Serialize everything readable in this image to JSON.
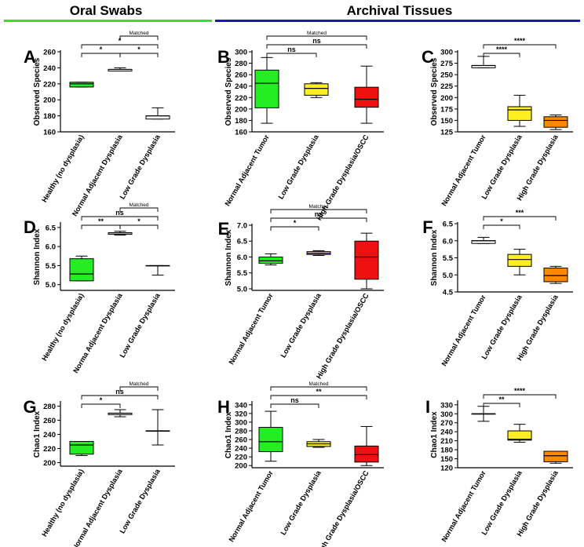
{
  "headers": {
    "oral": "Oral Swabs",
    "archival": "Archival Tissues"
  },
  "colors": {
    "oral_bar": "#33dd33",
    "archival_bar": "#1a1aaa",
    "green": "#22ee22",
    "yellow": "#ffee22",
    "red": "#ee1111",
    "orange": "#ff8800",
    "white": "#ffffff"
  },
  "chart_data": [
    {
      "id": "A",
      "panel_label": "A",
      "type": "box",
      "ylabel": "Observed Species",
      "ylim": [
        160,
        260
      ],
      "ticks": [
        "160",
        "180",
        "200",
        "220",
        "240",
        "260"
      ],
      "categories": [
        "Healthy (no dysplasia)",
        "Normal Adjacent Dysplasia",
        "Low Grade Dysplasia"
      ],
      "boxes": [
        {
          "fill": "green",
          "min": 216,
          "q1": 216,
          "median": 220,
          "q3": 222,
          "max": 222
        },
        {
          "fill": "white",
          "min": 236,
          "q1": 236,
          "median": 238,
          "q3": 238,
          "max": 240
        },
        {
          "fill": "white",
          "min": 176,
          "q1": 176,
          "median": 180,
          "q3": 180,
          "max": 190
        }
      ],
      "brackets": [
        {
          "label": "Matched",
          "from": 1,
          "to": 2,
          "level": 0
        },
        {
          "label": "*",
          "from": 0,
          "to": 2,
          "level": 1
        },
        {
          "label": "*",
          "from": 0,
          "to": 1,
          "level": 2
        },
        {
          "label": "*",
          "from": 1,
          "to": 2,
          "level": 2
        }
      ]
    },
    {
      "id": "B",
      "panel_label": "B",
      "type": "box",
      "ylabel": "Observed Species",
      "ylim": [
        160,
        300
      ],
      "ticks": [
        "160",
        "180",
        "200",
        "220",
        "240",
        "260",
        "280",
        "300"
      ],
      "categories": [
        "Normal Adjacent Tumor",
        "Low Grade Dysplasia",
        "High Grade Dysplasia/OSCC"
      ],
      "boxes": [
        {
          "fill": "green",
          "min": 175,
          "q1": 202,
          "median": 245,
          "q3": 268,
          "max": 290
        },
        {
          "fill": "yellow",
          "min": 220,
          "q1": 224,
          "median": 236,
          "q3": 244,
          "max": 246
        },
        {
          "fill": "red",
          "min": 175,
          "q1": 203,
          "median": 217,
          "q3": 238,
          "max": 275
        }
      ],
      "brackets": [
        {
          "label": "Matched",
          "from": 0,
          "to": 2,
          "level": 0
        },
        {
          "label": "ns",
          "from": 0,
          "to": 2,
          "level": 1
        },
        {
          "label": "ns",
          "from": 0,
          "to": 1,
          "level": 2
        }
      ]
    },
    {
      "id": "C",
      "panel_label": "C",
      "type": "box",
      "ylabel": "Observed Species",
      "ylim": [
        125,
        300
      ],
      "ticks": [
        "125",
        "150",
        "175",
        "200",
        "225",
        "250",
        "275",
        "300"
      ],
      "categories": [
        "Normal Adjacent Tumor",
        "Low Grade Dysplasia",
        "High Grade Dysplasia"
      ],
      "boxes": [
        {
          "fill": "white",
          "min": 265,
          "q1": 265,
          "median": 270,
          "q3": 270,
          "max": 290
        },
        {
          "fill": "yellow",
          "min": 137,
          "q1": 150,
          "median": 173,
          "q3": 180,
          "max": 205
        },
        {
          "fill": "orange",
          "min": 130,
          "q1": 135,
          "median": 150,
          "q3": 158,
          "max": 162
        }
      ],
      "brackets": [
        {
          "label": "****",
          "from": 0,
          "to": 2,
          "level": 1
        },
        {
          "label": "****",
          "from": 0,
          "to": 1,
          "level": 2
        }
      ]
    },
    {
      "id": "D",
      "panel_label": "D",
      "type": "box",
      "ylabel": "Shannon Index",
      "ylim": [
        4.85,
        6.6
      ],
      "ticks": [
        "5.0",
        "5.5",
        "6.0",
        "6.5"
      ],
      "categories": [
        "Healthy (no dysplasia)",
        "Norma Adjacent Dysplasia",
        "Low Grade Dysplasia"
      ],
      "boxes": [
        {
          "fill": "green",
          "min": 5.1,
          "q1": 5.1,
          "median": 5.28,
          "q3": 5.68,
          "max": 5.75
        },
        {
          "fill": "white",
          "min": 6.3,
          "q1": 6.32,
          "median": 6.36,
          "q3": 6.36,
          "max": 6.4
        },
        {
          "fill": "white",
          "min": 5.25,
          "q1": 5.5,
          "median": 5.5,
          "q3": 5.5,
          "max": 5.5
        }
      ],
      "brackets": [
        {
          "label": "Matched",
          "from": 1,
          "to": 2,
          "level": 0
        },
        {
          "label": "ns",
          "from": 0,
          "to": 2,
          "level": 1
        },
        {
          "label": "**",
          "from": 0,
          "to": 1,
          "level": 2
        },
        {
          "label": "*",
          "from": 1,
          "to": 2,
          "level": 2
        }
      ]
    },
    {
      "id": "E",
      "panel_label": "E",
      "type": "box",
      "ylabel": "Shannon Index",
      "ylim": [
        4.95,
        7.0
      ],
      "ticks": [
        "5.0",
        "5.5",
        "6.0",
        "6.5",
        "7.0"
      ],
      "categories": [
        "Normal Adjacent Tumor",
        "Low Grade Dysplasia",
        "High Grade Dysplasia/OSCC"
      ],
      "boxes": [
        {
          "fill": "green",
          "min": 5.75,
          "q1": 5.8,
          "median": 5.88,
          "q3": 6.0,
          "max": 6.1
        },
        {
          "fill": "yellow",
          "min": 6.05,
          "q1": 6.08,
          "median": 6.12,
          "q3": 6.17,
          "max": 6.2
        },
        {
          "fill": "red",
          "min": 5.0,
          "q1": 5.3,
          "median": 6.0,
          "q3": 6.5,
          "max": 6.75
        }
      ],
      "brackets": [
        {
          "label": "Matched",
          "from": 0,
          "to": 2,
          "level": 0
        },
        {
          "label": "ns",
          "from": 0,
          "to": 2,
          "level": 1
        },
        {
          "label": "*",
          "from": 0,
          "to": 1,
          "level": 2
        }
      ]
    },
    {
      "id": "F",
      "panel_label": "F",
      "type": "box",
      "ylabel": "Shannon Index",
      "ylim": [
        4.5,
        6.5
      ],
      "ticks": [
        "4.5",
        "5.0",
        "5.5",
        "6.0",
        "6.5"
      ],
      "categories": [
        "Normal Adjacent Tumor",
        "Low Grade Dysplasia",
        "High Grade Dysplasia"
      ],
      "boxes": [
        {
          "fill": "white",
          "min": 5.92,
          "q1": 5.92,
          "median": 6.0,
          "q3": 6.0,
          "max": 6.1
        },
        {
          "fill": "yellow",
          "min": 5.0,
          "q1": 5.25,
          "median": 5.45,
          "q3": 5.6,
          "max": 5.75
        },
        {
          "fill": "orange",
          "min": 4.75,
          "q1": 4.8,
          "median": 4.98,
          "q3": 5.2,
          "max": 5.25
        }
      ],
      "brackets": [
        {
          "label": "***",
          "from": 0,
          "to": 2,
          "level": 1
        },
        {
          "label": "*",
          "from": 0,
          "to": 1,
          "level": 2
        }
      ]
    },
    {
      "id": "G",
      "panel_label": "G",
      "type": "box",
      "ylabel": "Chao1 Index",
      "ylim": [
        195,
        285
      ],
      "ticks": [
        "200",
        "220",
        "240",
        "260",
        "280"
      ],
      "categories": [
        "Healthy (no dysplasia)",
        "Normal Adjacent Dysplasia",
        "Low Grade Dysplasia"
      ],
      "boxes": [
        {
          "fill": "green",
          "min": 210,
          "q1": 212,
          "median": 225,
          "q3": 230,
          "max": 230
        },
        {
          "fill": "white",
          "min": 265,
          "q1": 268,
          "median": 270,
          "q3": 270,
          "max": 275
        },
        {
          "fill": "white",
          "min": 225,
          "q1": 245,
          "median": 245,
          "q3": 245,
          "max": 275
        }
      ],
      "brackets": [
        {
          "label": "Matched",
          "from": 1,
          "to": 2,
          "level": 0
        },
        {
          "label": "ns",
          "from": 0,
          "to": 2,
          "level": 1
        },
        {
          "label": "*",
          "from": 0,
          "to": 1,
          "level": 2
        }
      ]
    },
    {
      "id": "H",
      "panel_label": "H",
      "type": "box",
      "ylabel": "Chao1 Index",
      "ylim": [
        195,
        345
      ],
      "ticks": [
        "200",
        "220",
        "240",
        "260",
        "280",
        "300",
        "320",
        "340"
      ],
      "categories": [
        "Normal Adjacent Tumor",
        "Low Grade Dysplasia",
        "High Grade Dysplasia/OSCC"
      ],
      "boxes": [
        {
          "fill": "green",
          "min": 210,
          "q1": 232,
          "median": 255,
          "q3": 288,
          "max": 325
        },
        {
          "fill": "yellow",
          "min": 242,
          "q1": 244,
          "median": 250,
          "q3": 255,
          "max": 260
        },
        {
          "fill": "red",
          "min": 200,
          "q1": 208,
          "median": 225,
          "q3": 245,
          "max": 290
        }
      ],
      "brackets": [
        {
          "label": "Matched",
          "from": 0,
          "to": 2,
          "level": 0
        },
        {
          "label": "**",
          "from": 0,
          "to": 2,
          "level": 1
        },
        {
          "label": "ns",
          "from": 0,
          "to": 1,
          "level": 2
        }
      ]
    },
    {
      "id": "I",
      "panel_label": "I",
      "type": "box",
      "ylabel": "Chao1 Index",
      "ylim": [
        120,
        340
      ],
      "ticks": [
        "120",
        "150",
        "180",
        "210",
        "240",
        "270",
        "300",
        "330"
      ],
      "categories": [
        "Normal Adjacent Tumor",
        "Low Grade Dysplasia",
        "High Grade Dysplasia"
      ],
      "boxes": [
        {
          "fill": "white",
          "min": 275,
          "q1": 300,
          "median": 300,
          "q3": 300,
          "max": 325
        },
        {
          "fill": "yellow",
          "min": 205,
          "q1": 212,
          "median": 215,
          "q3": 243,
          "max": 265
        },
        {
          "fill": "orange",
          "min": 135,
          "q1": 140,
          "median": 160,
          "q3": 175,
          "max": 175
        }
      ],
      "brackets": [
        {
          "label": "****",
          "from": 0,
          "to": 2,
          "level": 1
        },
        {
          "label": "**",
          "from": 0,
          "to": 1,
          "level": 2
        }
      ]
    }
  ]
}
